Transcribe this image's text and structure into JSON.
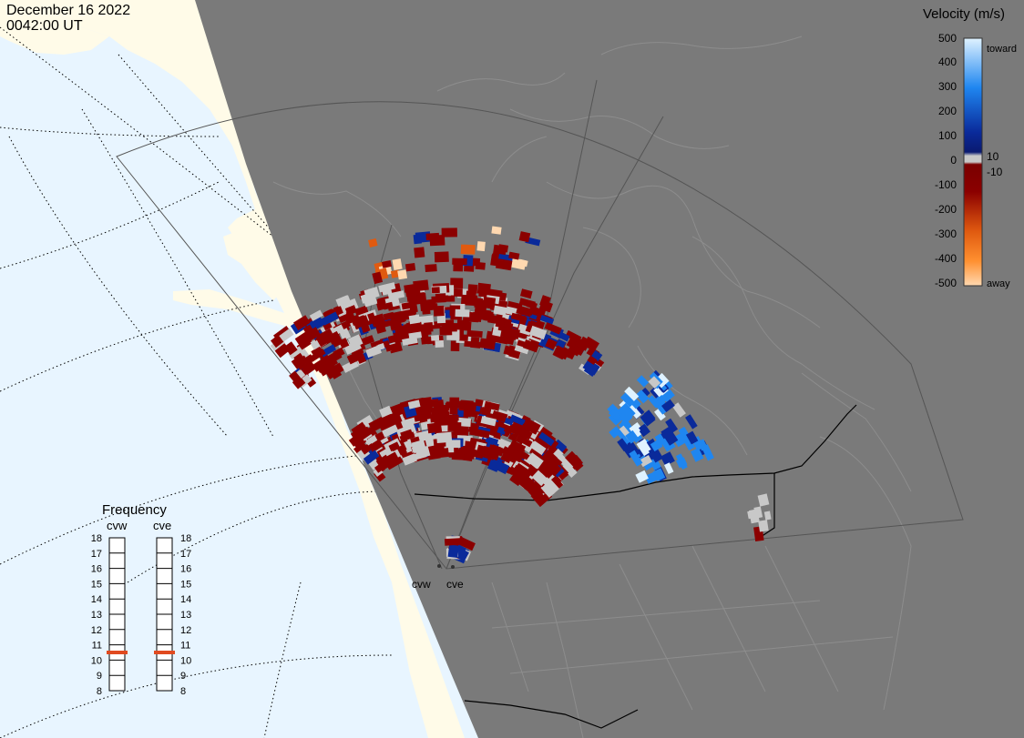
{
  "header": {
    "date": "December 16 2022",
    "time": "0042:00 UT"
  },
  "legend": {
    "title": "Velocity (m/s)",
    "ticks": [
      "500",
      "400",
      "300",
      "200",
      "100",
      "10",
      "0",
      "-10",
      "-100",
      "-200",
      "-300",
      "-400",
      "-500"
    ],
    "toward_label": "toward",
    "away_label": "away",
    "colors": {
      "toward_light": "#dff2ff",
      "toward_mid": "#1f86f0",
      "toward_dark": "#0a2a9a",
      "zero": "#c8c8c8",
      "away_dark": "#8b0000",
      "away_mid": "#e05a10",
      "away_light": "#ffd8b0"
    }
  },
  "frequency": {
    "title": "Frequency",
    "radars": [
      {
        "name": "cvw",
        "selected_mhz": 10.5
      },
      {
        "name": "cve",
        "selected_mhz": 10.5
      }
    ],
    "scale": [
      "18",
      "17",
      "16",
      "15",
      "14",
      "13",
      "12",
      "11",
      "10",
      "9",
      "8"
    ],
    "marker_color": "#e04a20"
  },
  "stations": [
    {
      "name": "cvw"
    },
    {
      "name": "cve"
    }
  ],
  "map_colors": {
    "ocean": "#e8f5ff",
    "land": "#fffbe8",
    "night": "#7a7a7a",
    "coast": "#8d8d8d",
    "border": "#000000"
  }
}
